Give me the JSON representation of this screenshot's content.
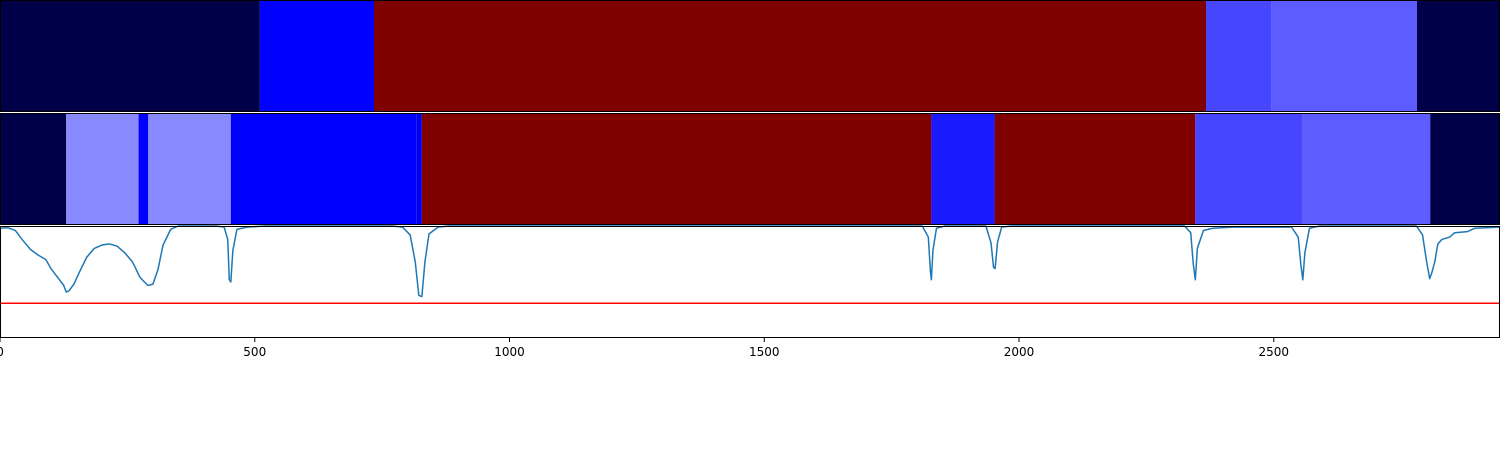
{
  "chart_data": [
    {
      "type": "segment-bar",
      "title": "",
      "xlim": [
        0,
        2944
      ],
      "segments": [
        {
          "start": 0,
          "end": 510,
          "color": "#000048"
        },
        {
          "start": 510,
          "end": 734,
          "color": "#0000ff"
        },
        {
          "start": 734,
          "end": 2367,
          "color": "#800000"
        },
        {
          "start": 2367,
          "end": 2496,
          "color": "#4646ff"
        },
        {
          "start": 2496,
          "end": 2781,
          "color": "#5c5cff"
        },
        {
          "start": 2781,
          "end": 2944,
          "color": "#000048"
        }
      ]
    },
    {
      "type": "segment-bar",
      "title": "",
      "xlim": [
        0,
        2944
      ],
      "segments": [
        {
          "start": 0,
          "end": 130,
          "color": "#000048"
        },
        {
          "start": 130,
          "end": 272,
          "color": "#8888ff"
        },
        {
          "start": 272,
          "end": 291,
          "color": "#0000ff"
        },
        {
          "start": 291,
          "end": 453,
          "color": "#8888ff"
        },
        {
          "start": 453,
          "end": 817,
          "color": "#0000ff"
        },
        {
          "start": 817,
          "end": 828,
          "color": "#0000ee"
        },
        {
          "start": 828,
          "end": 1828,
          "color": "#800000"
        },
        {
          "start": 1828,
          "end": 1952,
          "color": "#1a1aff"
        },
        {
          "start": 1952,
          "end": 2346,
          "color": "#800000"
        },
        {
          "start": 2346,
          "end": 2557,
          "color": "#4646ff"
        },
        {
          "start": 2557,
          "end": 2807,
          "color": "#5c5cff"
        },
        {
          "start": 2807,
          "end": 2944,
          "color": "#000048"
        }
      ]
    },
    {
      "type": "line",
      "title": "",
      "xlabel": "",
      "ylabel": "",
      "xlim": [
        0,
        2944
      ],
      "ylim": [
        0,
        1
      ],
      "xticks": [
        "0",
        "500",
        "1000",
        "1500",
        "2000",
        "2500"
      ],
      "series": [
        {
          "color": "#1f77b4",
          "points": [
            [
              0,
              0.98
            ],
            [
              15,
              0.985
            ],
            [
              30,
              0.96
            ],
            [
              45,
              0.87
            ],
            [
              60,
              0.79
            ],
            [
              75,
              0.74
            ],
            [
              90,
              0.7
            ],
            [
              100,
              0.62
            ],
            [
              110,
              0.56
            ],
            [
              120,
              0.5
            ],
            [
              125,
              0.47
            ],
            [
              130,
              0.41
            ],
            [
              135,
              0.42
            ],
            [
              145,
              0.48
            ],
            [
              155,
              0.58
            ],
            [
              170,
              0.72
            ],
            [
              185,
              0.8
            ],
            [
              200,
              0.83
            ],
            [
              215,
              0.84
            ],
            [
              230,
              0.82
            ],
            [
              245,
              0.76
            ],
            [
              260,
              0.68
            ],
            [
              275,
              0.54
            ],
            [
              290,
              0.47
            ],
            [
              300,
              0.48
            ],
            [
              310,
              0.61
            ],
            [
              320,
              0.83
            ],
            [
              335,
              0.97
            ],
            [
              350,
              1.0
            ],
            [
              425,
              1.0
            ],
            [
              440,
              0.99
            ],
            [
              447,
              0.88
            ],
            [
              450,
              0.52
            ],
            [
              453,
              0.5
            ],
            [
              457,
              0.78
            ],
            [
              465,
              0.97
            ],
            [
              485,
              0.99
            ],
            [
              520,
              1.0
            ],
            [
              770,
              1.0
            ],
            [
              790,
              0.99
            ],
            [
              805,
              0.92
            ],
            [
              815,
              0.68
            ],
            [
              822,
              0.38
            ],
            [
              828,
              0.37
            ],
            [
              834,
              0.68
            ],
            [
              842,
              0.93
            ],
            [
              860,
              0.99
            ],
            [
              880,
              1.0
            ],
            [
              1810,
              1.0
            ],
            [
              1822,
              0.9
            ],
            [
              1826,
              0.6
            ],
            [
              1828,
              0.52
            ],
            [
              1831,
              0.78
            ],
            [
              1838,
              0.98
            ],
            [
              1855,
              1.0
            ],
            [
              1935,
              1.0
            ],
            [
              1945,
              0.85
            ],
            [
              1950,
              0.63
            ],
            [
              1953,
              0.62
            ],
            [
              1958,
              0.86
            ],
            [
              1966,
              0.99
            ],
            [
              1985,
              1.0
            ],
            [
              2325,
              1.0
            ],
            [
              2337,
              0.94
            ],
            [
              2342,
              0.66
            ],
            [
              2346,
              0.52
            ],
            [
              2350,
              0.8
            ],
            [
              2362,
              0.96
            ],
            [
              2380,
              0.98
            ],
            [
              2420,
              0.99
            ],
            [
              2535,
              0.99
            ],
            [
              2548,
              0.9
            ],
            [
              2553,
              0.66
            ],
            [
              2557,
              0.52
            ],
            [
              2561,
              0.76
            ],
            [
              2570,
              0.98
            ],
            [
              2590,
              1.0
            ],
            [
              2780,
              1.0
            ],
            [
              2792,
              0.92
            ],
            [
              2800,
              0.68
            ],
            [
              2806,
              0.53
            ],
            [
              2810,
              0.58
            ],
            [
              2816,
              0.68
            ],
            [
              2822,
              0.84
            ],
            [
              2830,
              0.88
            ],
            [
              2845,
              0.9
            ],
            [
              2855,
              0.94
            ],
            [
              2880,
              0.95
            ],
            [
              2895,
              0.98
            ],
            [
              2944,
              0.99
            ]
          ]
        },
        {
          "color": "#ff0000",
          "points": [
            [
              0,
              0.31
            ],
            [
              2944,
              0.31
            ]
          ]
        }
      ]
    }
  ]
}
